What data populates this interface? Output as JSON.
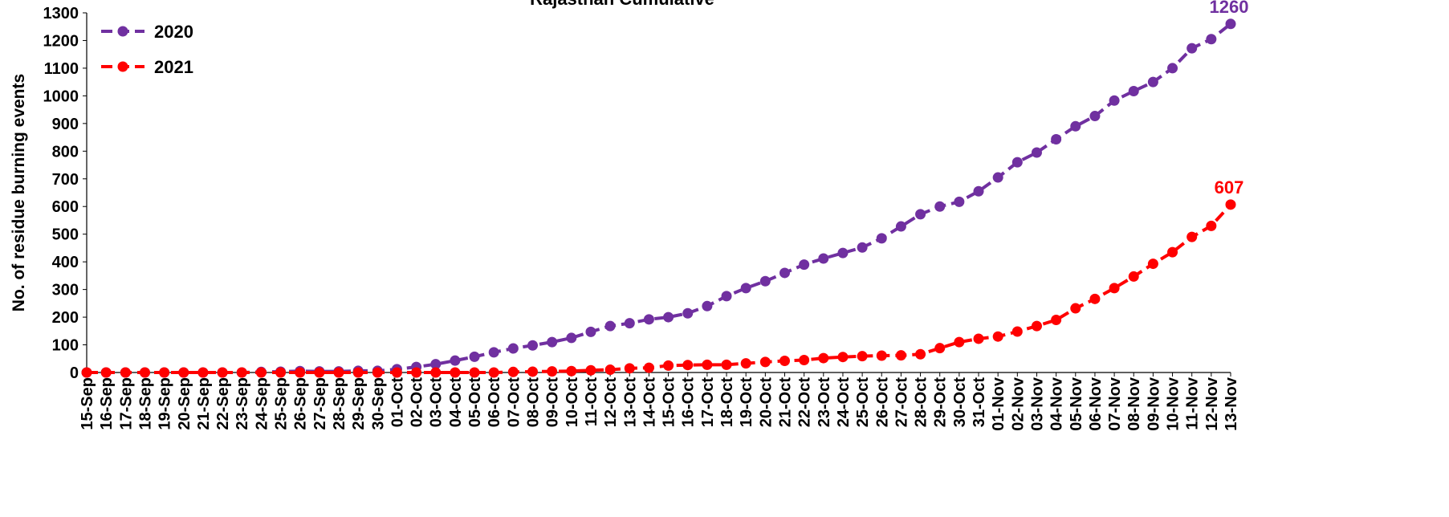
{
  "chart_data": {
    "type": "line",
    "title": "Rajasthan Cumulative",
    "xlabel": "",
    "ylabel": "No. of residue burning events",
    "ylim": [
      0,
      1300
    ],
    "yticks": [
      0,
      100,
      200,
      300,
      400,
      500,
      600,
      700,
      800,
      900,
      1000,
      1100,
      1200,
      1300
    ],
    "grid": false,
    "legend_position": "top-left",
    "categories": [
      "15-Sep",
      "16-Sep",
      "17-Sep",
      "18-Sep",
      "19-Sep",
      "20-Sep",
      "21-Sep",
      "22-Sep",
      "23-Sep",
      "24-Sep",
      "25-Sep",
      "26-Sep",
      "27-Sep",
      "28-Sep",
      "29-Sep",
      "30-Sep",
      "01-Oct",
      "02-Oct",
      "03-Oct",
      "04-Oct",
      "05-Oct",
      "06-Oct",
      "07-Oct",
      "08-Oct",
      "09-Oct",
      "10-Oct",
      "11-Oct",
      "12-Oct",
      "13-Oct",
      "14-Oct",
      "15-Oct",
      "16-Oct",
      "17-Oct",
      "18-Oct",
      "19-Oct",
      "20-Oct",
      "21-Oct",
      "22-Oct",
      "23-Oct",
      "24-Oct",
      "25-Oct",
      "26-Oct",
      "27-Oct",
      "28-Oct",
      "29-Oct",
      "30-Oct",
      "31-Oct",
      "01-Nov",
      "02-Nov",
      "03-Nov",
      "04-Nov",
      "05-Nov",
      "06-Nov",
      "07-Nov",
      "08-Nov",
      "09-Nov",
      "10-Nov",
      "11-Nov",
      "12-Nov",
      "13-Nov"
    ],
    "series": [
      {
        "name": "2020",
        "color": "#7030A0",
        "end_label": "1260",
        "values": [
          0,
          0,
          0,
          0,
          0,
          0,
          0,
          0,
          0,
          2,
          3,
          5,
          4,
          4,
          6,
          6,
          12,
          20,
          30,
          43,
          57,
          73,
          87,
          98,
          110,
          125,
          147,
          168,
          178,
          192,
          200,
          214,
          240,
          276,
          305,
          330,
          360,
          390,
          412,
          432,
          452,
          485,
          528,
          572,
          600,
          617,
          655,
          705,
          760,
          795,
          843,
          890,
          927,
          983,
          1017,
          1050,
          1100,
          1172,
          1205,
          1260
        ]
      },
      {
        "name": "2021",
        "color": "#FF0000",
        "end_label": "607",
        "values": [
          0,
          0,
          0,
          0,
          0,
          0,
          0,
          0,
          0,
          0,
          0,
          0,
          0,
          0,
          0,
          0,
          0,
          0,
          0,
          0,
          0,
          0,
          2,
          3,
          4,
          5,
          8,
          10,
          15,
          17,
          25,
          27,
          28,
          28,
          33,
          38,
          42,
          45,
          52,
          56,
          59,
          61,
          62,
          66,
          88,
          110,
          122,
          130,
          148,
          168,
          190,
          232,
          266,
          305,
          347,
          393,
          435,
          490,
          530,
          607
        ]
      }
    ]
  }
}
